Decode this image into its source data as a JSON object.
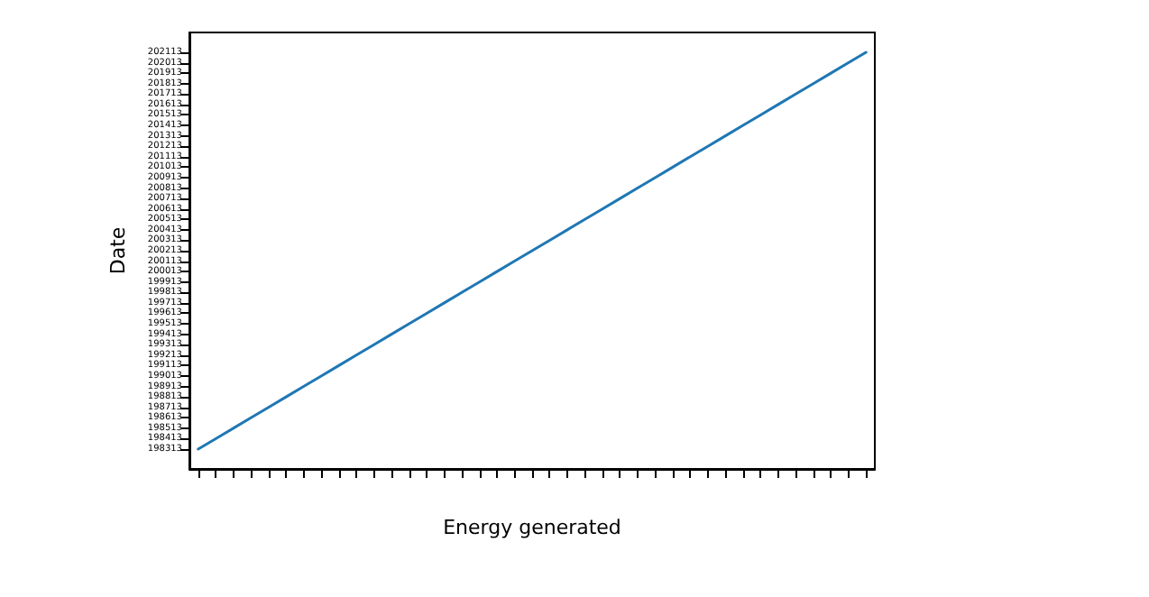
{
  "chart_data": {
    "type": "line",
    "xlabel": "Energy generated",
    "ylabel": "Date",
    "categories": [
      null,
      null,
      null,
      null,
      null,
      null,
      null,
      null,
      null,
      null,
      null,
      null,
      null,
      null,
      null,
      null,
      null,
      null,
      null,
      null,
      null,
      null,
      null,
      null,
      null,
      null,
      null,
      null,
      null,
      null,
      null,
      null,
      null,
      null,
      null,
      null,
      null,
      null,
      null
    ],
    "series": [
      {
        "color": "#1f77b4",
        "values": [
          198313,
          198413,
          198513,
          198613,
          198713,
          198813,
          198913,
          199013,
          199113,
          199213,
          199313,
          199413,
          199513,
          199613,
          199713,
          199813,
          199913,
          200013,
          200113,
          200213,
          200313,
          200413,
          200513,
          200613,
          200713,
          200813,
          200913,
          201013,
          201113,
          201213,
          201313,
          201413,
          201513,
          201613,
          201713,
          201813,
          201913,
          202013,
          202113
        ]
      }
    ],
    "ylim": [
      198123,
      202303
    ],
    "yticks": [
      198313,
      198413,
      198513,
      198613,
      198713,
      198813,
      198913,
      199013,
      199113,
      199213,
      199313,
      199413,
      199513,
      199613,
      199713,
      199813,
      199913,
      200013,
      200113,
      200213,
      200313,
      200413,
      200513,
      200613,
      200713,
      200813,
      200913,
      201013,
      201113,
      201213,
      201313,
      201413,
      201513,
      201613,
      201713,
      201813,
      201913,
      202013,
      202113
    ],
    "tick_labels": "y",
    "grid": false,
    "marker": "none",
    "line_style": "solid"
  }
}
